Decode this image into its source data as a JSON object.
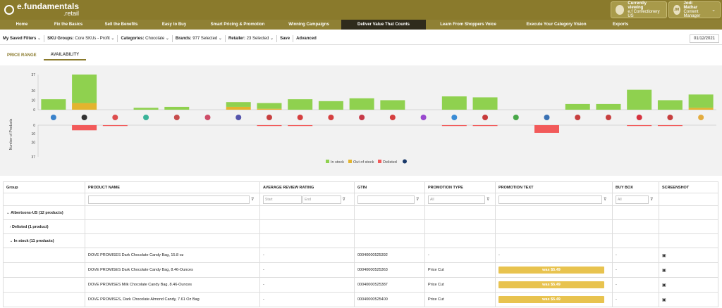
{
  "header": {
    "brand_line1": "e.fundamentals",
    "brand_line2": ".retail",
    "viewing_label": "Currently viewing",
    "viewing_value": "e.f Confectionery US",
    "user_initials": "JM",
    "user_name": "Jodi Mathar",
    "user_role": "Content Manager"
  },
  "nav": [
    "Home",
    "Fix the Basics",
    "Sell the Benefits",
    "Easy to Buy",
    "Smart Pricing & Promotion",
    "Winning Campaigns",
    "Deliver Value That Counts",
    "Learn From Shoppers Voice",
    "Execute Your Category Vision",
    "Exports"
  ],
  "nav_active_index": 6,
  "filters": {
    "saved": "My Saved Filters",
    "sku_label": "SKU Groups:",
    "sku_value": "Core SKUs - Profit",
    "cat_label": "Categories:",
    "cat_value": "Chocolate",
    "brand_label": "Brands:",
    "brand_value": "977 Selected",
    "retailer_label": "Retailer:",
    "retailer_value": "23 Selected",
    "save": "Save",
    "advanced": "Advanced",
    "date": "01/12/2021"
  },
  "tabs": [
    "PRICE RANGE",
    "AVAILABILITY"
  ],
  "tab_active_index": 1,
  "chart_data": {
    "type": "bar",
    "ylabel": "Number of Products",
    "top_ticks": [
      37,
      20,
      10,
      0
    ],
    "bottom_ticks": [
      0,
      10,
      20,
      37
    ],
    "series": [
      {
        "name": "In stock",
        "color": "#8fd14f",
        "values": [
          11,
          30,
          0,
          2,
          3,
          0,
          5,
          6,
          11,
          9,
          12,
          10,
          0,
          14,
          13,
          0,
          0,
          6,
          6,
          21,
          10,
          14
        ]
      },
      {
        "name": "Out of stock",
        "color": "#e3b42e",
        "values": [
          0,
          7,
          0,
          0,
          0,
          0,
          3,
          1,
          0,
          0,
          0,
          0,
          0,
          0,
          0,
          0,
          0,
          0,
          0,
          0,
          0,
          2
        ]
      },
      {
        "name": "Delisted",
        "color": "#f25a5a",
        "values": [
          0,
          6,
          1,
          0,
          0,
          0,
          0,
          1,
          1,
          0,
          0,
          0,
          0,
          1,
          1,
          0,
          9,
          0,
          0,
          1,
          1,
          0
        ]
      }
    ],
    "retailer_icon_colors": [
      "#1a6fc4",
      "#111111",
      "#d93030",
      "#1aa88a",
      "#c03030",
      "#c83050",
      "#3a3aa0",
      "#c02020",
      "#d02020",
      "#d02020",
      "#c01a2a",
      "#d02020",
      "#8a2bc8",
      "#1a7ad0",
      "#c01a1a",
      "#2a9a2a",
      "#1a5aa8",
      "#c02020",
      "#c02020",
      "#d01020",
      "#c02020",
      "#e0a020"
    ],
    "legend_info_icon": "info-icon"
  },
  "table": {
    "columns": [
      "Group",
      "PRODUCT NAME",
      "AVERAGE REVIEW RATING",
      "GTIN",
      "PROMOTION TYPE",
      "PROMOTION TEXT",
      "BUY BOX",
      "SCREENSHOT"
    ],
    "filters": {
      "start": "Start",
      "end": "End",
      "promo_type": "All",
      "buy_box": "All"
    },
    "groups": [
      {
        "label": "Albertsons-US (12 products)"
      },
      {
        "label": "Delisted (1 product)"
      },
      {
        "label": "In stock (11 products)"
      }
    ],
    "rows": [
      {
        "name": "DOVE PROMISES Dark Chocolate Candy Bag, 15.8 oz",
        "rating": "-",
        "gtin": "00040000525392",
        "promo_type": "-",
        "promo_text": "-",
        "buy_box": "-"
      },
      {
        "name": "DOVE PROMISES Dark Chocolate Candy Bag, 8.46-Ounces",
        "rating": "-",
        "gtin": "00040000525363",
        "promo_type": "Price Cut",
        "promo_text": "was $5.49",
        "buy_box": "-"
      },
      {
        "name": "DOVE PROMISES Milk Chocolate Candy Bag, 8.46-Ounces",
        "rating": "-",
        "gtin": "00040000525387",
        "promo_type": "Price Cut",
        "promo_text": "was $5.49",
        "buy_box": "-"
      },
      {
        "name": "DOVE PROMISES, Dark Chocolate Almond Candy, 7.61 Oz Bag",
        "rating": "-",
        "gtin": "00040000525400",
        "promo_type": "Price Cut",
        "promo_text": "was $5.49",
        "buy_box": "-"
      }
    ]
  }
}
